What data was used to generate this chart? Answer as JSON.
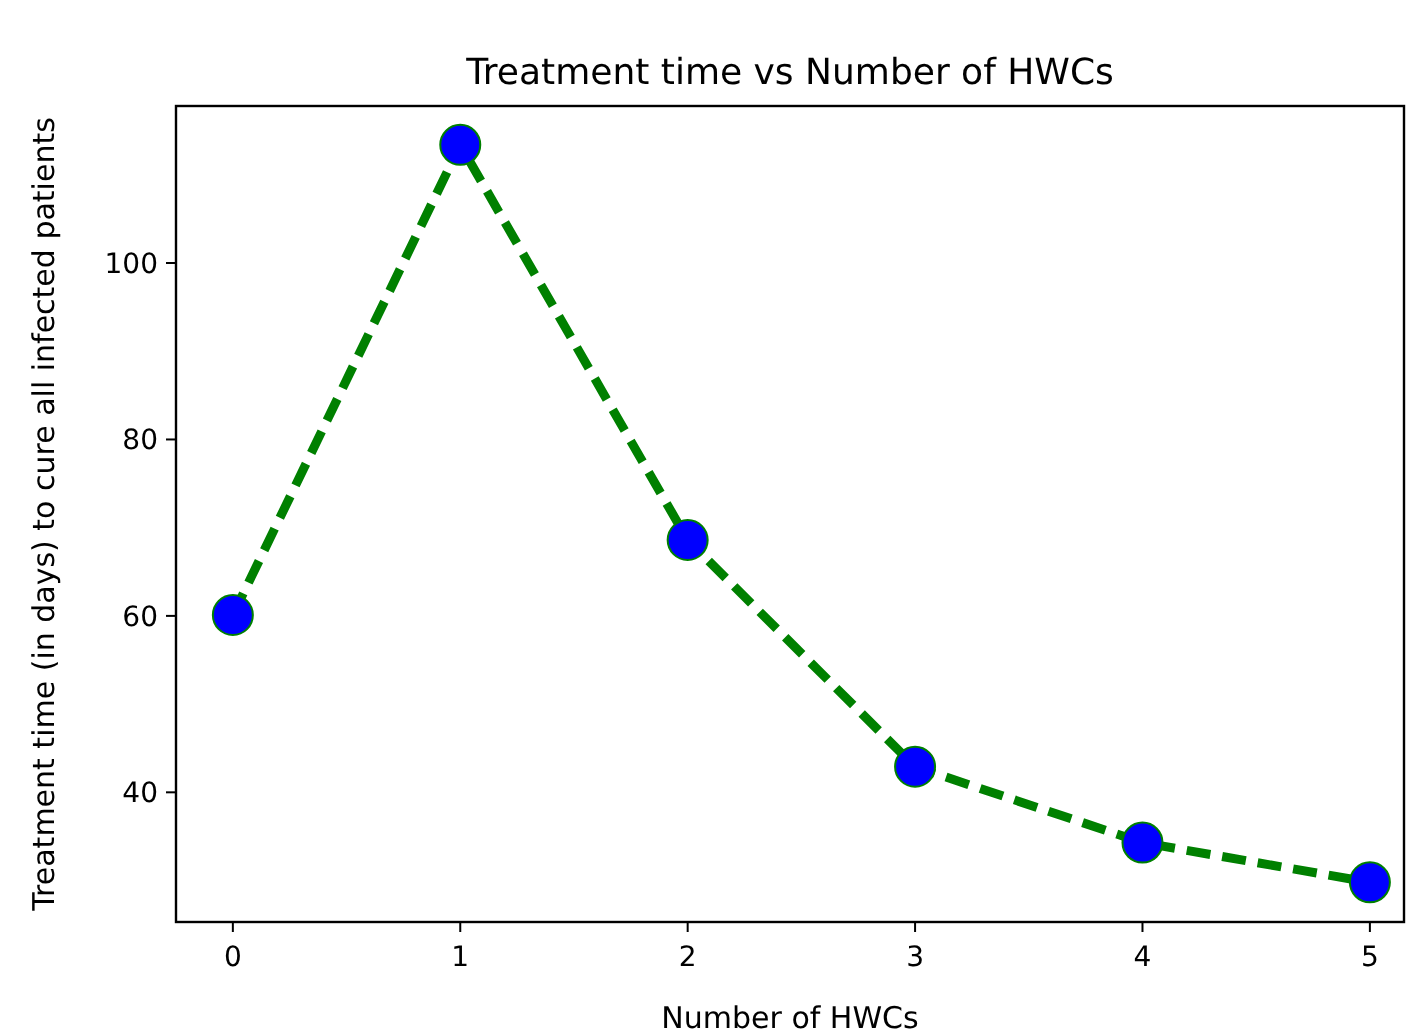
{
  "chart_data": {
    "type": "line",
    "title": "Treatment time vs Number of HWCs",
    "xlabel": "Number of HWCs",
    "ylabel": "Treatment time (in days) to cure all infected patients",
    "x": [
      0,
      1,
      2,
      3,
      4,
      5
    ],
    "series": [
      {
        "color": "#008000",
        "values": [
          60.1,
          113.4,
          68.6,
          42.9,
          34.3,
          29.8
        ]
      }
    ],
    "xlim": [
      -0.25,
      5.15
    ],
    "xticks": [
      0,
      1,
      2,
      3,
      4,
      5
    ],
    "ylim": [
      25.3,
      117.8
    ],
    "yticks": [
      40,
      60,
      80,
      100
    ],
    "marker": "circle",
    "line_style": "dashed",
    "grid": false
  }
}
